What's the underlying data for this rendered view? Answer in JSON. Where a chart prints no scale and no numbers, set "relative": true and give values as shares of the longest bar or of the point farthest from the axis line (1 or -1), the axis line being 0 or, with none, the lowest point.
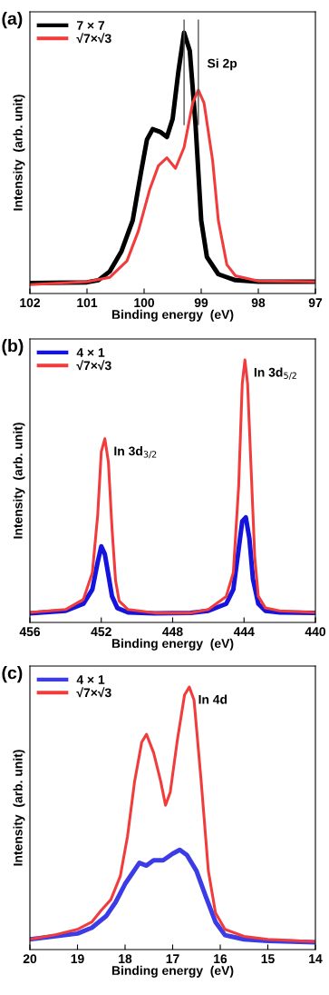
{
  "chart_data": [
    {
      "type": "line",
      "title": "(a)",
      "xlabel": "Binding energy  (eV)",
      "ylabel": "Intensity  (arb. unit)",
      "relative": true,
      "xlim": [
        102,
        97
      ],
      "xticks": [
        102,
        101,
        100,
        99,
        98,
        97
      ],
      "legend": "top left",
      "grid": false,
      "series": [
        {
          "name": "7 × 7",
          "color": "#000000",
          "x": [
            102,
            101,
            100.8,
            100.6,
            100.4,
            100.2,
            100.05,
            99.95,
            99.85,
            99.72,
            99.6,
            99.5,
            99.4,
            99.3,
            99.2,
            99.1,
            99.0,
            98.9,
            98.7,
            98.4,
            98,
            97
          ],
          "values": [
            0.04,
            0.043,
            0.051,
            0.085,
            0.16,
            0.28,
            0.47,
            0.59,
            0.63,
            0.62,
            0.6,
            0.67,
            0.85,
            1.0,
            0.93,
            0.65,
            0.28,
            0.14,
            0.074,
            0.051,
            0.045,
            0.045
          ]
        },
        {
          "name": "√7×√3",
          "color": "#f03c3c",
          "x": [
            102,
            101,
            100.6,
            100.3,
            100.1,
            99.9,
            99.75,
            99.6,
            99.45,
            99.3,
            99.15,
            99.05,
            98.95,
            98.8,
            98.7,
            98.55,
            98.4,
            98,
            97
          ],
          "values": [
            0.034,
            0.045,
            0.062,
            0.125,
            0.24,
            0.4,
            0.49,
            0.52,
            0.48,
            0.56,
            0.73,
            0.78,
            0.73,
            0.51,
            0.28,
            0.11,
            0.068,
            0.048,
            0.045
          ]
        }
      ],
      "ref_lines": [
        {
          "axis": "x",
          "value": 99.3,
          "color": "#555555"
        },
        {
          "axis": "x",
          "value": 99.05,
          "color": "#555555"
        }
      ],
      "annotations": [
        {
          "text": "Si 2p",
          "x": 99.05,
          "y": 0.93
        }
      ]
    },
    {
      "type": "line",
      "title": "(b)",
      "xlabel": "Binding energy  (eV)",
      "ylabel": "Intensity  (arb. unit)",
      "relative": true,
      "xlim": [
        456,
        440
      ],
      "xticks": [
        456,
        452,
        448,
        444,
        440
      ],
      "legend": "top left",
      "grid": false,
      "series": [
        {
          "name": "4 × 1",
          "color": "#1414dc",
          "x": [
            456,
            454,
            453,
            452.5,
            452.2,
            452.0,
            451.8,
            451.6,
            451.4,
            451.1,
            450.5,
            449,
            447,
            446,
            445,
            444.6,
            444.3,
            444.1,
            443.9,
            443.7,
            443.5,
            443.2,
            442.8,
            442,
            440
          ],
          "values": [
            0.035,
            0.044,
            0.071,
            0.126,
            0.23,
            0.29,
            0.26,
            0.18,
            0.1,
            0.055,
            0.038,
            0.035,
            0.036,
            0.044,
            0.071,
            0.126,
            0.28,
            0.385,
            0.4,
            0.32,
            0.165,
            0.071,
            0.044,
            0.038,
            0.036
          ]
        },
        {
          "name": "√7×√3",
          "color": "#f03c3c",
          "x": [
            456,
            454,
            453,
            452.5,
            452.2,
            452.0,
            451.8,
            451.6,
            451.4,
            451.2,
            451,
            450.5,
            449,
            447,
            446,
            445,
            444.6,
            444.3,
            444.1,
            443.95,
            443.8,
            443.6,
            443.4,
            443.2,
            442.8,
            442,
            440
          ],
          "values": [
            0.038,
            0.049,
            0.088,
            0.19,
            0.41,
            0.65,
            0.7,
            0.61,
            0.36,
            0.16,
            0.082,
            0.049,
            0.036,
            0.036,
            0.049,
            0.099,
            0.19,
            0.52,
            0.91,
            1.0,
            0.91,
            0.58,
            0.25,
            0.1,
            0.055,
            0.044,
            0.038
          ]
        }
      ],
      "annotations": [
        {
          "text": "In 3d$_{3/2}$",
          "x": 451.8,
          "y": 0.7
        },
        {
          "text": "In 3d$_{5/2}$",
          "x": 443.95,
          "y": 1.0
        }
      ]
    },
    {
      "type": "line",
      "title": "(c)",
      "xlabel": "Binding energy  (eV)",
      "ylabel": "Intensity  (arb. unit)",
      "relative": true,
      "xlim": [
        20,
        14
      ],
      "xticks": [
        20,
        19,
        18,
        17,
        16,
        15,
        14
      ],
      "legend": "top left",
      "grid": false,
      "series": [
        {
          "name": "4 × 1",
          "color": "#3c3ce6",
          "x": [
            20,
            19.5,
            19,
            18.7,
            18.4,
            18.2,
            18.0,
            17.85,
            17.7,
            17.55,
            17.4,
            17.2,
            17.0,
            16.85,
            16.7,
            16.5,
            16.3,
            16.1,
            15.9,
            15.5,
            15,
            14
          ],
          "values": [
            0.039,
            0.05,
            0.061,
            0.083,
            0.127,
            0.18,
            0.25,
            0.29,
            0.33,
            0.32,
            0.34,
            0.34,
            0.365,
            0.38,
            0.36,
            0.3,
            0.2,
            0.105,
            0.055,
            0.039,
            0.033,
            0.028
          ]
        },
        {
          "name": "√7×√3",
          "color": "#f03c3c",
          "x": [
            20,
            19.5,
            19,
            18.7,
            18.5,
            18.3,
            18.1,
            17.95,
            17.8,
            17.65,
            17.55,
            17.4,
            17.25,
            17.15,
            17.05,
            16.9,
            16.75,
            16.65,
            16.55,
            16.4,
            16.25,
            16.1,
            15.9,
            15.5,
            15,
            14
          ],
          "values": [
            0.039,
            0.055,
            0.077,
            0.105,
            0.15,
            0.19,
            0.28,
            0.43,
            0.64,
            0.79,
            0.82,
            0.75,
            0.64,
            0.55,
            0.6,
            0.8,
            0.97,
            1.0,
            0.95,
            0.64,
            0.3,
            0.14,
            0.077,
            0.05,
            0.039,
            0.03
          ]
        }
      ],
      "annotations": [
        {
          "text": "In 4d",
          "x": 16.65,
          "y": 1.0
        }
      ]
    }
  ]
}
